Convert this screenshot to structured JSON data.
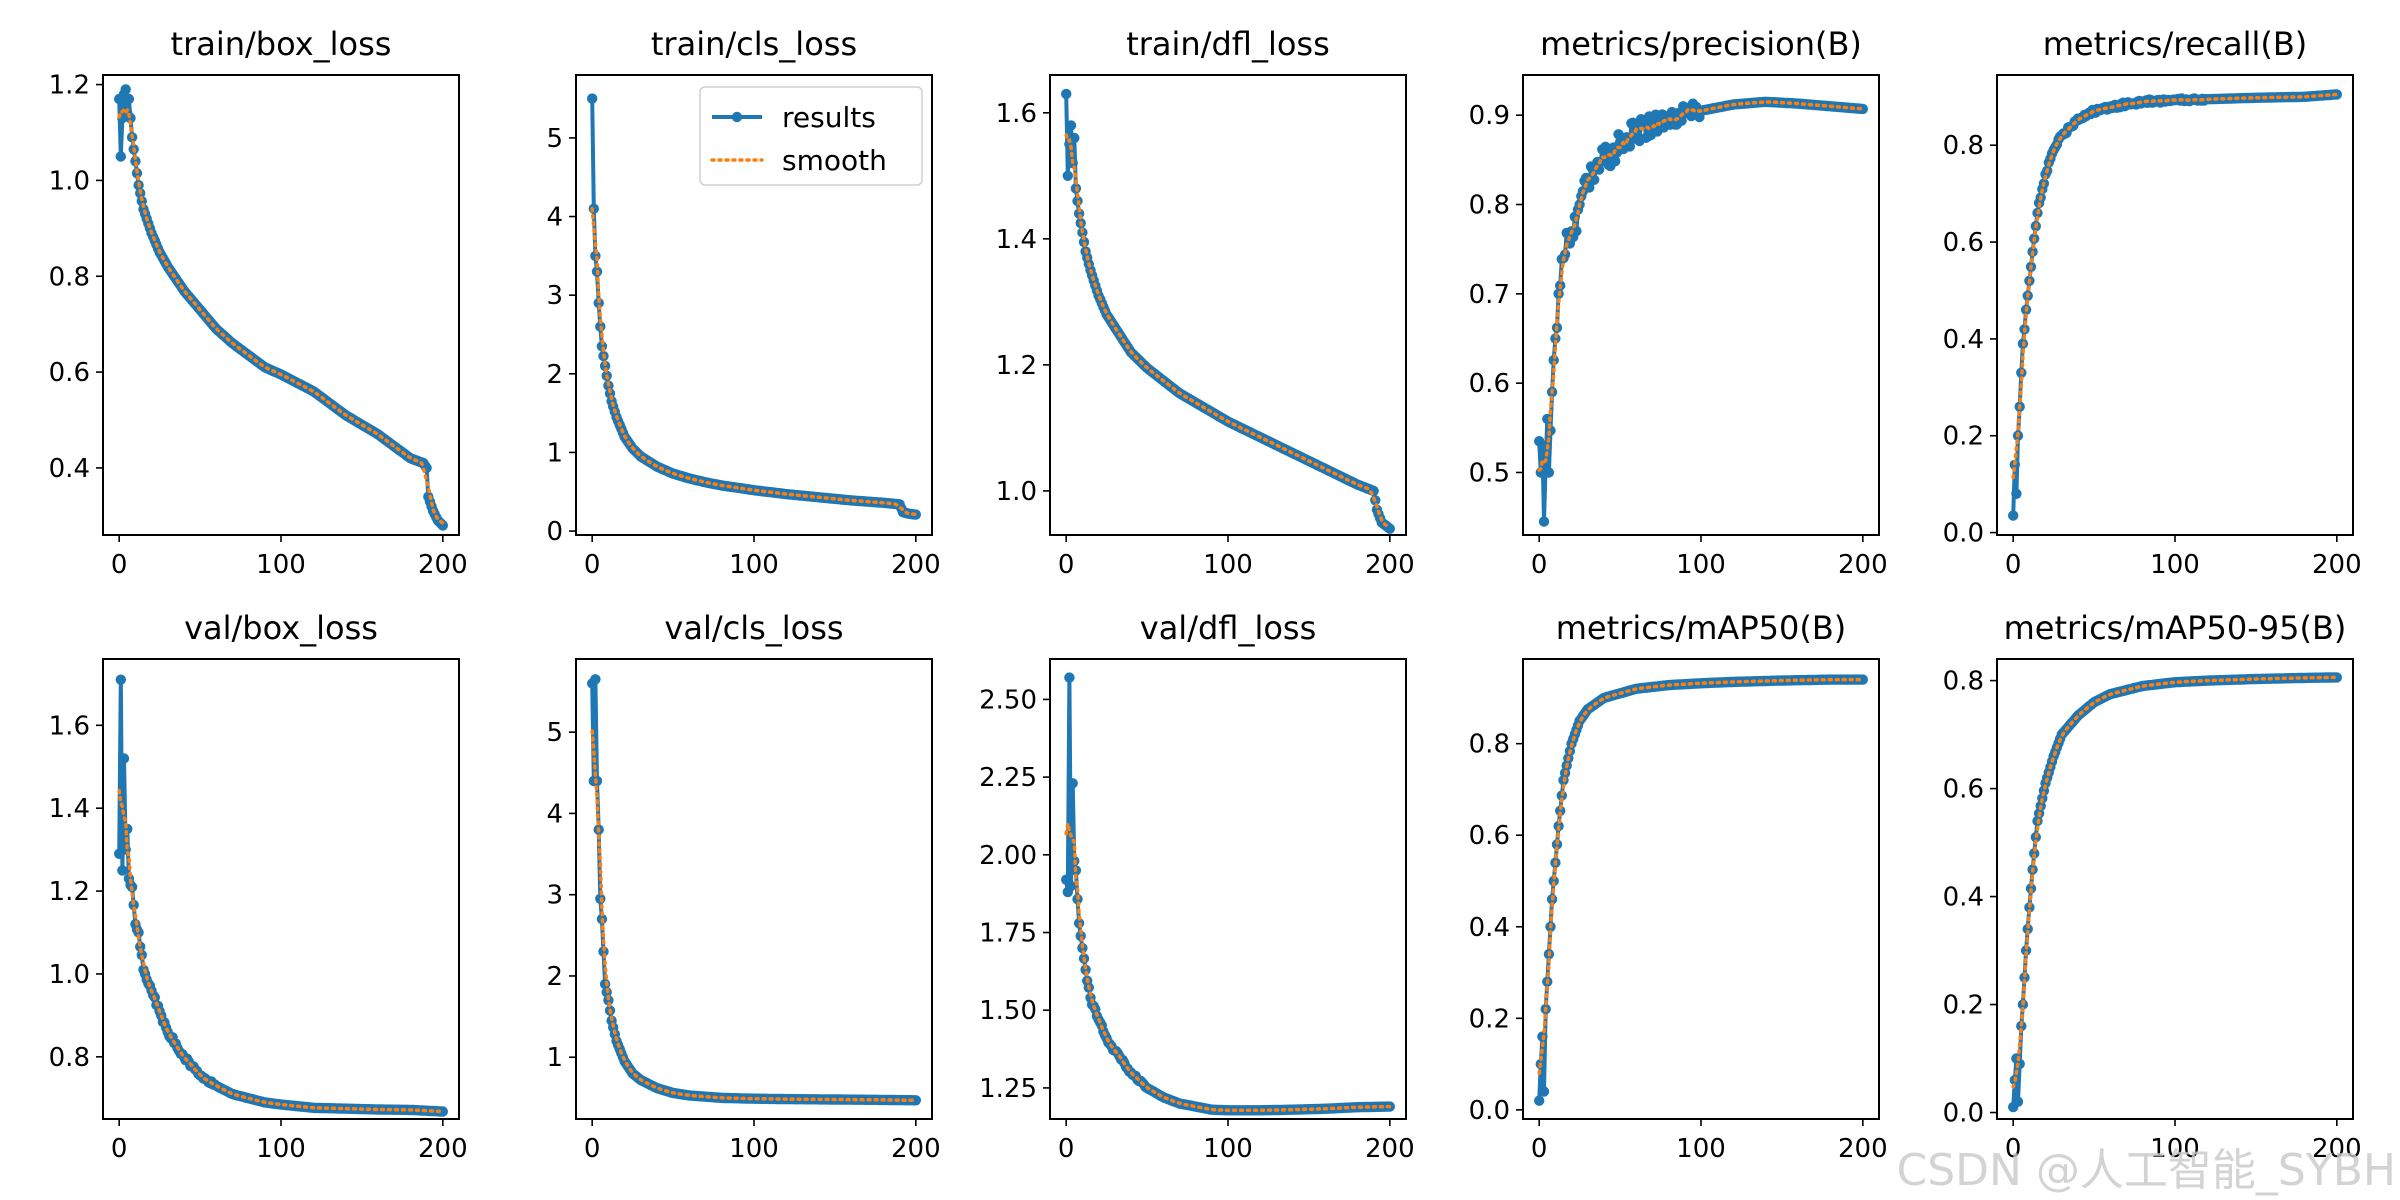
{
  "colors": {
    "results": "#1f77b4",
    "smooth": "#ff7f0e"
  },
  "legend": {
    "results": "results",
    "smooth": "smooth",
    "placement": "top-right"
  },
  "watermark": "CSDN @人工智能_SYBH",
  "chart_data": [
    {
      "type": "line",
      "title": "train/box_loss",
      "xlim": [
        -10,
        210
      ],
      "ylim": [
        0.26,
        1.22
      ],
      "xticks": [
        0,
        100,
        200
      ],
      "yticks": [
        0.4,
        0.6,
        0.8,
        1.0,
        1.2
      ],
      "tick_decimals": 1,
      "anchors": [
        [
          0,
          1.17
        ],
        [
          1,
          1.05
        ],
        [
          2,
          1.13
        ],
        [
          3,
          1.18
        ],
        [
          4,
          1.19
        ],
        [
          5,
          1.14
        ],
        [
          6,
          1.17
        ],
        [
          8,
          1.09
        ],
        [
          10,
          1.04
        ],
        [
          12,
          0.99
        ],
        [
          15,
          0.94
        ],
        [
          20,
          0.89
        ],
        [
          25,
          0.85
        ],
        [
          30,
          0.82
        ],
        [
          40,
          0.77
        ],
        [
          50,
          0.73
        ],
        [
          60,
          0.69
        ],
        [
          70,
          0.66
        ],
        [
          80,
          0.635
        ],
        [
          90,
          0.61
        ],
        [
          100,
          0.595
        ],
        [
          120,
          0.56
        ],
        [
          140,
          0.51
        ],
        [
          160,
          0.47
        ],
        [
          180,
          0.42
        ],
        [
          188,
          0.41
        ],
        [
          190,
          0.4
        ],
        [
          191,
          0.34
        ],
        [
          194,
          0.31
        ],
        [
          197,
          0.29
        ],
        [
          200,
          0.28
        ]
      ]
    },
    {
      "type": "line",
      "title": "train/cls_loss",
      "xlim": [
        -10,
        210
      ],
      "ylim": [
        -0.05,
        5.8
      ],
      "xticks": [
        0,
        100,
        200
      ],
      "yticks": [
        0,
        1,
        2,
        3,
        4,
        5
      ],
      "tick_decimals": 0,
      "legend": true,
      "anchors": [
        [
          0,
          5.5
        ],
        [
          1,
          4.1
        ],
        [
          2,
          3.5
        ],
        [
          3,
          3.3
        ],
        [
          4,
          2.9
        ],
        [
          5,
          2.6
        ],
        [
          6,
          2.35
        ],
        [
          8,
          2.1
        ],
        [
          10,
          1.85
        ],
        [
          12,
          1.65
        ],
        [
          15,
          1.45
        ],
        [
          20,
          1.2
        ],
        [
          25,
          1.05
        ],
        [
          30,
          0.95
        ],
        [
          40,
          0.82
        ],
        [
          50,
          0.73
        ],
        [
          60,
          0.67
        ],
        [
          70,
          0.62
        ],
        [
          80,
          0.58
        ],
        [
          90,
          0.55
        ],
        [
          100,
          0.52
        ],
        [
          120,
          0.47
        ],
        [
          140,
          0.43
        ],
        [
          160,
          0.39
        ],
        [
          180,
          0.36
        ],
        [
          190,
          0.34
        ],
        [
          192,
          0.24
        ],
        [
          196,
          0.22
        ],
        [
          200,
          0.21
        ]
      ]
    },
    {
      "type": "line",
      "title": "train/dfl_loss",
      "xlim": [
        -10,
        210
      ],
      "ylim": [
        0.93,
        1.66
      ],
      "xticks": [
        0,
        100,
        200
      ],
      "yticks": [
        1.0,
        1.2,
        1.4,
        1.6
      ],
      "tick_decimals": 1,
      "anchors": [
        [
          0,
          1.63
        ],
        [
          1,
          1.5
        ],
        [
          2,
          1.55
        ],
        [
          3,
          1.58
        ],
        [
          4,
          1.52
        ],
        [
          5,
          1.56
        ],
        [
          6,
          1.48
        ],
        [
          8,
          1.44
        ],
        [
          10,
          1.41
        ],
        [
          12,
          1.38
        ],
        [
          15,
          1.35
        ],
        [
          20,
          1.31
        ],
        [
          25,
          1.28
        ],
        [
          30,
          1.26
        ],
        [
          40,
          1.22
        ],
        [
          50,
          1.195
        ],
        [
          60,
          1.175
        ],
        [
          70,
          1.155
        ],
        [
          80,
          1.14
        ],
        [
          90,
          1.125
        ],
        [
          100,
          1.11
        ],
        [
          120,
          1.085
        ],
        [
          140,
          1.06
        ],
        [
          160,
          1.035
        ],
        [
          180,
          1.01
        ],
        [
          190,
          1.0
        ],
        [
          192,
          0.97
        ],
        [
          195,
          0.95
        ],
        [
          200,
          0.94
        ]
      ]
    },
    {
      "type": "line",
      "title": "metrics/precision(B)",
      "xlim": [
        -10,
        210
      ],
      "ylim": [
        0.43,
        0.945
      ],
      "xticks": [
        0,
        100,
        200
      ],
      "yticks": [
        0.5,
        0.6,
        0.7,
        0.8,
        0.9
      ],
      "tick_decimals": 1,
      "anchors": [
        [
          0,
          0.535
        ],
        [
          1,
          0.5
        ],
        [
          2,
          0.53
        ],
        [
          3,
          0.445
        ],
        [
          4,
          0.51
        ],
        [
          5,
          0.56
        ],
        [
          6,
          0.5
        ],
        [
          8,
          0.59
        ],
        [
          10,
          0.65
        ],
        [
          12,
          0.7
        ],
        [
          15,
          0.74
        ],
        [
          20,
          0.77
        ],
        [
          25,
          0.8
        ],
        [
          30,
          0.82
        ],
        [
          35,
          0.84
        ],
        [
          40,
          0.85
        ],
        [
          50,
          0.87
        ],
        [
          60,
          0.88
        ],
        [
          70,
          0.89
        ],
        [
          80,
          0.895
        ],
        [
          90,
          0.905
        ],
        [
          100,
          0.905
        ],
        [
          120,
          0.912
        ],
        [
          140,
          0.915
        ],
        [
          160,
          0.913
        ],
        [
          180,
          0.91
        ],
        [
          200,
          0.907
        ]
      ],
      "noise": 0.022,
      "noise_until": 100
    },
    {
      "type": "line",
      "title": "metrics/recall(B)",
      "xlim": [
        -10,
        210
      ],
      "ylim": [
        -0.005,
        0.945
      ],
      "xticks": [
        0,
        100,
        200
      ],
      "yticks": [
        0.0,
        0.2,
        0.4,
        0.6,
        0.8
      ],
      "tick_decimals": 1,
      "anchors": [
        [
          0,
          0.035
        ],
        [
          1,
          0.14
        ],
        [
          2,
          0.08
        ],
        [
          3,
          0.2
        ],
        [
          4,
          0.26
        ],
        [
          5,
          0.33
        ],
        [
          6,
          0.39
        ],
        [
          8,
          0.46
        ],
        [
          10,
          0.52
        ],
        [
          12,
          0.58
        ],
        [
          15,
          0.66
        ],
        [
          20,
          0.74
        ],
        [
          25,
          0.79
        ],
        [
          30,
          0.82
        ],
        [
          40,
          0.855
        ],
        [
          50,
          0.87
        ],
        [
          60,
          0.88
        ],
        [
          80,
          0.89
        ],
        [
          100,
          0.893
        ],
        [
          120,
          0.895
        ],
        [
          150,
          0.898
        ],
        [
          180,
          0.9
        ],
        [
          200,
          0.905
        ]
      ],
      "noise": 0.007,
      "noise_until": 120
    },
    {
      "type": "line",
      "title": "val/box_loss",
      "xlim": [
        -10,
        210
      ],
      "ylim": [
        0.65,
        1.76
      ],
      "xticks": [
        0,
        100,
        200
      ],
      "yticks": [
        0.8,
        1.0,
        1.2,
        1.4,
        1.6
      ],
      "tick_decimals": 1,
      "anchors": [
        [
          0,
          1.29
        ],
        [
          1,
          1.71
        ],
        [
          2,
          1.25
        ],
        [
          3,
          1.52
        ],
        [
          4,
          1.3
        ],
        [
          5,
          1.35
        ],
        [
          6,
          1.23
        ],
        [
          8,
          1.21
        ],
        [
          10,
          1.12
        ],
        [
          12,
          1.1
        ],
        [
          15,
          1.01
        ],
        [
          20,
          0.96
        ],
        [
          25,
          0.91
        ],
        [
          30,
          0.86
        ],
        [
          40,
          0.8
        ],
        [
          50,
          0.755
        ],
        [
          60,
          0.73
        ],
        [
          70,
          0.71
        ],
        [
          80,
          0.7
        ],
        [
          90,
          0.69
        ],
        [
          100,
          0.685
        ],
        [
          120,
          0.677
        ],
        [
          140,
          0.675
        ],
        [
          160,
          0.673
        ],
        [
          180,
          0.672
        ],
        [
          200,
          0.668
        ]
      ],
      "noise": 0.008,
      "noise_until": 60
    },
    {
      "type": "line",
      "title": "val/cls_loss",
      "xlim": [
        -10,
        210
      ],
      "ylim": [
        0.24,
        5.9
      ],
      "xticks": [
        0,
        100,
        200
      ],
      "yticks": [
        1,
        2,
        3,
        4,
        5
      ],
      "tick_decimals": 0,
      "anchors": [
        [
          0,
          5.6
        ],
        [
          1,
          4.4
        ],
        [
          2,
          5.65
        ],
        [
          3,
          4.4
        ],
        [
          4,
          3.8
        ],
        [
          5,
          2.95
        ],
        [
          6,
          2.7
        ],
        [
          7,
          2.3
        ],
        [
          8,
          1.9
        ],
        [
          10,
          1.7
        ],
        [
          12,
          1.45
        ],
        [
          15,
          1.2
        ],
        [
          20,
          0.95
        ],
        [
          25,
          0.8
        ],
        [
          30,
          0.72
        ],
        [
          40,
          0.62
        ],
        [
          50,
          0.56
        ],
        [
          60,
          0.53
        ],
        [
          80,
          0.5
        ],
        [
          100,
          0.49
        ],
        [
          120,
          0.485
        ],
        [
          150,
          0.48
        ],
        [
          180,
          0.475
        ],
        [
          200,
          0.47
        ]
      ]
    },
    {
      "type": "line",
      "title": "val/dfl_loss",
      "xlim": [
        -10,
        210
      ],
      "ylim": [
        1.15,
        2.63
      ],
      "xticks": [
        0,
        100,
        200
      ],
      "yticks": [
        1.25,
        1.5,
        1.75,
        2.0,
        2.25,
        2.5
      ],
      "tick_decimals": 2,
      "anchors": [
        [
          0,
          1.92
        ],
        [
          1,
          1.88
        ],
        [
          2,
          2.57
        ],
        [
          3,
          1.9
        ],
        [
          4,
          2.23
        ],
        [
          5,
          1.98
        ],
        [
          6,
          1.95
        ],
        [
          8,
          1.78
        ],
        [
          10,
          1.7
        ],
        [
          12,
          1.63
        ],
        [
          15,
          1.54
        ],
        [
          20,
          1.47
        ],
        [
          25,
          1.41
        ],
        [
          30,
          1.37
        ],
        [
          40,
          1.3
        ],
        [
          50,
          1.25
        ],
        [
          60,
          1.22
        ],
        [
          70,
          1.2
        ],
        [
          80,
          1.19
        ],
        [
          90,
          1.18
        ],
        [
          100,
          1.178
        ],
        [
          120,
          1.178
        ],
        [
          140,
          1.18
        ],
        [
          160,
          1.183
        ],
        [
          180,
          1.188
        ],
        [
          200,
          1.19
        ]
      ],
      "noise": 0.01,
      "noise_until": 50
    },
    {
      "type": "line",
      "title": "metrics/mAP50(B)",
      "xlim": [
        -10,
        210
      ],
      "ylim": [
        -0.02,
        0.985
      ],
      "xticks": [
        0,
        100,
        200
      ],
      "yticks": [
        0.0,
        0.2,
        0.4,
        0.6,
        0.8
      ],
      "tick_decimals": 1,
      "anchors": [
        [
          0,
          0.02
        ],
        [
          1,
          0.1
        ],
        [
          2,
          0.16
        ],
        [
          3,
          0.04
        ],
        [
          4,
          0.22
        ],
        [
          5,
          0.28
        ],
        [
          6,
          0.34
        ],
        [
          8,
          0.46
        ],
        [
          10,
          0.54
        ],
        [
          12,
          0.62
        ],
        [
          15,
          0.72
        ],
        [
          20,
          0.8
        ],
        [
          25,
          0.85
        ],
        [
          30,
          0.875
        ],
        [
          40,
          0.9
        ],
        [
          50,
          0.91
        ],
        [
          60,
          0.92
        ],
        [
          80,
          0.928
        ],
        [
          100,
          0.932
        ],
        [
          120,
          0.935
        ],
        [
          150,
          0.938
        ],
        [
          180,
          0.94
        ],
        [
          200,
          0.94
        ]
      ]
    },
    {
      "type": "line",
      "title": "metrics/mAP50-95(B)",
      "xlim": [
        -10,
        210
      ],
      "ylim": [
        -0.012,
        0.84
      ],
      "xticks": [
        0,
        100,
        200
      ],
      "yticks": [
        0.0,
        0.2,
        0.4,
        0.6,
        0.8
      ],
      "tick_decimals": 1,
      "anchors": [
        [
          0,
          0.01
        ],
        [
          1,
          0.06
        ],
        [
          2,
          0.1
        ],
        [
          3,
          0.02
        ],
        [
          4,
          0.09
        ],
        [
          5,
          0.16
        ],
        [
          6,
          0.2
        ],
        [
          8,
          0.3
        ],
        [
          10,
          0.38
        ],
        [
          12,
          0.45
        ],
        [
          15,
          0.54
        ],
        [
          20,
          0.61
        ],
        [
          25,
          0.66
        ],
        [
          30,
          0.7
        ],
        [
          40,
          0.735
        ],
        [
          50,
          0.76
        ],
        [
          60,
          0.775
        ],
        [
          80,
          0.79
        ],
        [
          100,
          0.797
        ],
        [
          120,
          0.8
        ],
        [
          150,
          0.803
        ],
        [
          180,
          0.805
        ],
        [
          200,
          0.806
        ]
      ]
    }
  ]
}
